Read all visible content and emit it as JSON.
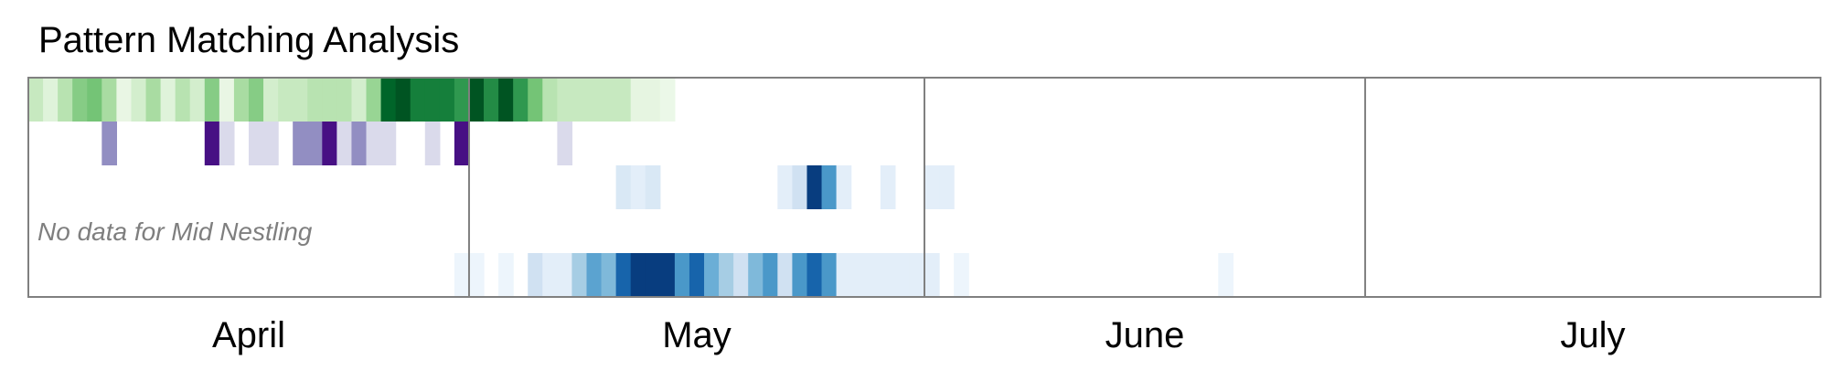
{
  "chart_data": {
    "type": "heatmap",
    "title": "Pattern Matching Analysis",
    "x_axis": {
      "unit": "day",
      "range": [
        "April 1",
        "July 31"
      ],
      "months": [
        {
          "label": "April",
          "start": 1,
          "end": 30
        },
        {
          "label": "May",
          "start": 31,
          "end": 61
        },
        {
          "label": "June",
          "start": 62,
          "end": 91
        },
        {
          "label": "July",
          "start": 92,
          "end": 122
        }
      ]
    },
    "rows": [
      {
        "colormap": "greens",
        "cells": [
          [
            1,
            0.25
          ],
          [
            2,
            0.15
          ],
          [
            3,
            0.3
          ],
          [
            4,
            0.45
          ],
          [
            5,
            0.5
          ],
          [
            6,
            0.35
          ],
          [
            7,
            0.1
          ],
          [
            8,
            0.2
          ],
          [
            9,
            0.35
          ],
          [
            10,
            0.15
          ],
          [
            11,
            0.3
          ],
          [
            12,
            0.2
          ],
          [
            13,
            0.45
          ],
          [
            14,
            0.1
          ],
          [
            15,
            0.35
          ],
          [
            16,
            0.45
          ],
          [
            17,
            0.2
          ],
          [
            18,
            0.25
          ],
          [
            19,
            0.25
          ],
          [
            20,
            0.3
          ],
          [
            21,
            0.3
          ],
          [
            22,
            0.3
          ],
          [
            23,
            0.2
          ],
          [
            24,
            0.4
          ],
          [
            25,
            0.9
          ],
          [
            26,
            0.95
          ],
          [
            27,
            0.8
          ],
          [
            28,
            0.8
          ],
          [
            29,
            0.8
          ],
          [
            30,
            0.7
          ],
          [
            31,
            0.95
          ],
          [
            32,
            0.75
          ],
          [
            33,
            0.95
          ],
          [
            34,
            0.7
          ],
          [
            35,
            0.5
          ],
          [
            36,
            0.3
          ],
          [
            37,
            0.25
          ],
          [
            38,
            0.25
          ],
          [
            39,
            0.25
          ],
          [
            40,
            0.25
          ],
          [
            41,
            0.25
          ],
          [
            42,
            0.12
          ],
          [
            43,
            0.12
          ],
          [
            44,
            0.08
          ]
        ]
      },
      {
        "colormap": "purples",
        "cells": [
          [
            6,
            0.55
          ],
          [
            13,
            0.95
          ],
          [
            14,
            0.25
          ],
          [
            16,
            0.25
          ],
          [
            17,
            0.25
          ],
          [
            19,
            0.55
          ],
          [
            20,
            0.55
          ],
          [
            21,
            0.95
          ],
          [
            22,
            0.25
          ],
          [
            23,
            0.55
          ],
          [
            24,
            0.25
          ],
          [
            25,
            0.25
          ],
          [
            28,
            0.25
          ],
          [
            30,
            0.95
          ],
          [
            37,
            0.25
          ]
        ]
      },
      {
        "colormap": "blues",
        "cells": [
          [
            41,
            0.15
          ],
          [
            42,
            0.1
          ],
          [
            43,
            0.15
          ],
          [
            52,
            0.1
          ],
          [
            53,
            0.2
          ],
          [
            54,
            0.95
          ],
          [
            55,
            0.6
          ],
          [
            56,
            0.1
          ],
          [
            59,
            0.1
          ],
          [
            62,
            0.1
          ],
          [
            63,
            0.1
          ]
        ]
      },
      {
        "colormap": "blues",
        "note": "No data for Mid Nestling",
        "cells": []
      },
      {
        "colormap": "blues",
        "cells": [
          [
            30,
            0.05
          ],
          [
            31,
            0.05
          ],
          [
            33,
            0.05
          ],
          [
            35,
            0.2
          ],
          [
            36,
            0.1
          ],
          [
            37,
            0.1
          ],
          [
            38,
            0.35
          ],
          [
            39,
            0.55
          ],
          [
            40,
            0.45
          ],
          [
            41,
            0.8
          ],
          [
            42,
            0.95
          ],
          [
            43,
            0.95
          ],
          [
            44,
            0.95
          ],
          [
            45,
            0.6
          ],
          [
            46,
            0.8
          ],
          [
            47,
            0.5
          ],
          [
            48,
            0.35
          ],
          [
            49,
            0.2
          ],
          [
            50,
            0.45
          ],
          [
            51,
            0.6
          ],
          [
            52,
            0.2
          ],
          [
            53,
            0.6
          ],
          [
            54,
            0.8
          ],
          [
            55,
            0.6
          ],
          [
            56,
            0.1
          ],
          [
            57,
            0.1
          ],
          [
            58,
            0.1
          ],
          [
            59,
            0.1
          ],
          [
            60,
            0.1
          ],
          [
            61,
            0.1
          ],
          [
            62,
            0.1
          ],
          [
            64,
            0.05
          ],
          [
            82,
            0.05
          ]
        ]
      }
    ],
    "grid": false,
    "legend": "none"
  }
}
